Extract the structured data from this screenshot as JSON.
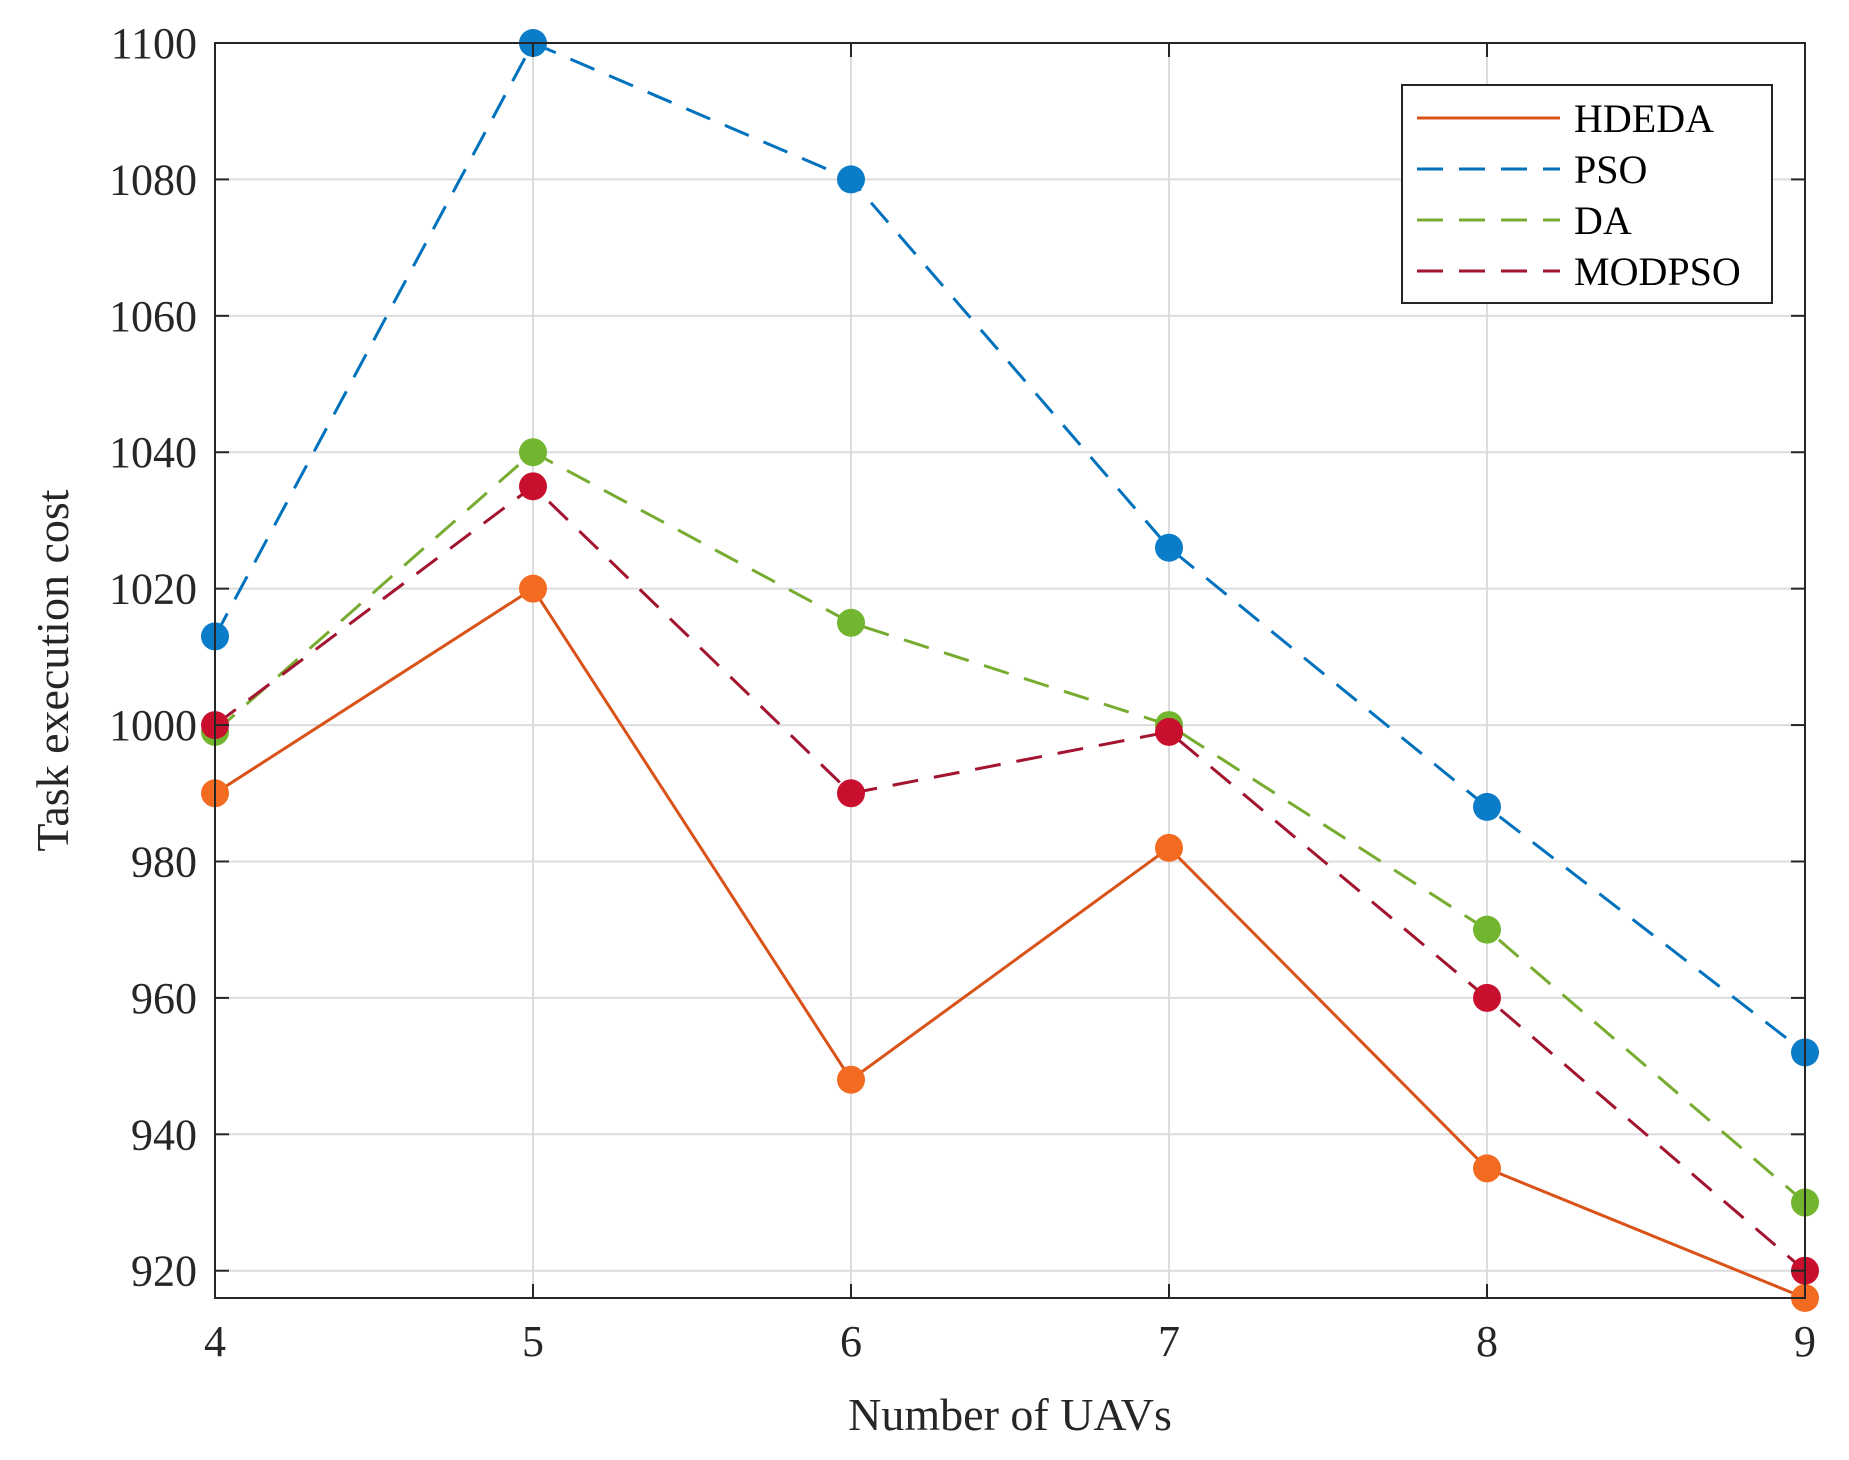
{
  "chart_data": {
    "type": "line",
    "title": "",
    "xlabel": "Number of UAVs",
    "ylabel": "Task execution cost",
    "x": [
      4,
      5,
      6,
      7,
      8,
      9
    ],
    "xlim": [
      4,
      9
    ],
    "ylim": [
      916,
      1100
    ],
    "xticks": [
      "4",
      "5",
      "6",
      "7",
      "8",
      "9"
    ],
    "yticks": [
      920,
      940,
      960,
      980,
      1000,
      1020,
      1040,
      1060,
      1080,
      1100
    ],
    "ytick_labels": [
      "920",
      "940",
      "960",
      "980",
      "1000",
      "1020",
      "1040",
      "1060",
      "1080",
      "1100"
    ],
    "grid": true,
    "legend_position": "top-right",
    "series": [
      {
        "name": "HDEDA",
        "values": [
          990,
          1020,
          948,
          982,
          935,
          916
        ],
        "line_color": "#D95319",
        "marker_color": "#F26B21",
        "dash": "solid"
      },
      {
        "name": "PSO",
        "values": [
          1013,
          1100,
          1080,
          1026,
          988,
          952
        ],
        "line_color": "#0072BD",
        "marker_color": "#0A7CC8",
        "dash": "dashed"
      },
      {
        "name": "DA",
        "values": [
          999,
          1040,
          1015,
          1000,
          970,
          930
        ],
        "line_color": "#77AC30",
        "marker_color": "#72B52E",
        "dash": "dashed"
      },
      {
        "name": "MODPSO",
        "values": [
          1000,
          1035,
          990,
          999,
          960,
          920
        ],
        "line_color": "#A2142F",
        "marker_color": "#C8102E",
        "dash": "dashed"
      }
    ]
  }
}
